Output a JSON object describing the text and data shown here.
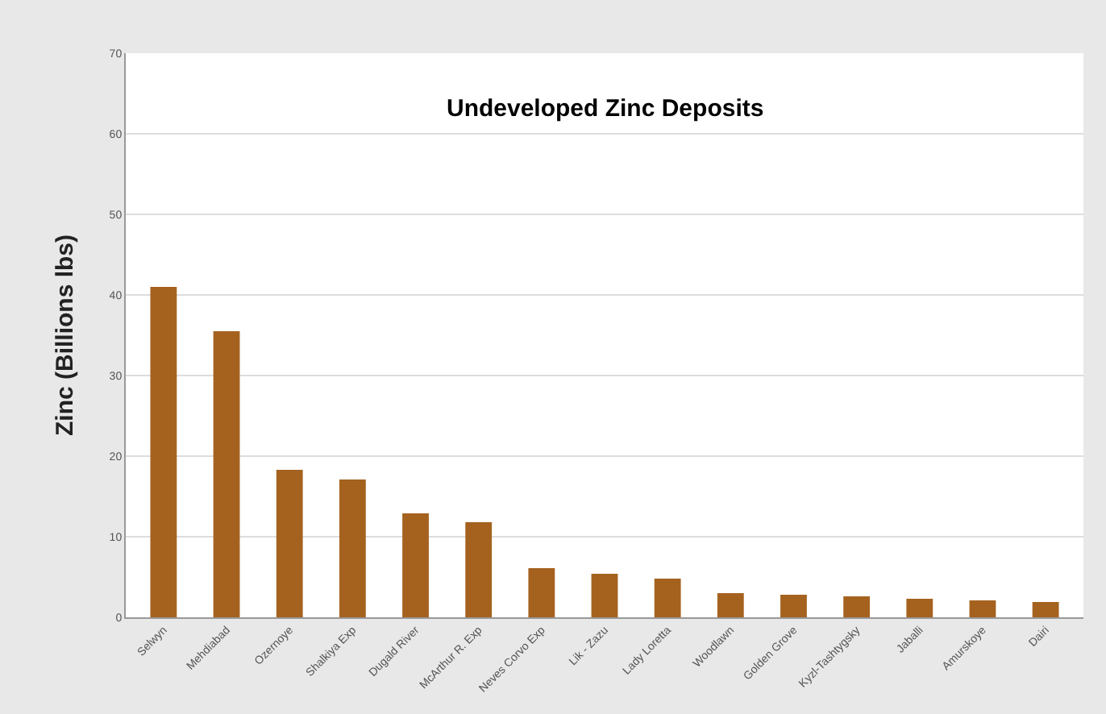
{
  "chart_data": {
    "type": "bar",
    "title": "Undeveloped Zinc Deposits",
    "ylabel": "Zinc (Billions lbs)",
    "categories": [
      "Selwyn",
      "Mehdiabad",
      "Ozernoye",
      "Shalkiya Exp",
      "Dugald River",
      "McArthur R. Exp",
      "Neves Corvo Exp",
      "Lik - Zazu",
      "Lady Loretta",
      "Woodlawn",
      "Golden Grove",
      "Kyzl-Tashtygsky",
      "Jaballi",
      "Amurskoye",
      "Dairi"
    ],
    "values": [
      41,
      35.5,
      18.3,
      17.1,
      12.9,
      11.8,
      6.1,
      5.4,
      4.8,
      3.0,
      2.8,
      2.6,
      2.3,
      2.1,
      1.9
    ],
    "color": "#a5621f",
    "ylim": [
      0,
      70
    ],
    "yticks": [
      0,
      10,
      20,
      30,
      40,
      50,
      60,
      70
    ],
    "grid": "y"
  }
}
